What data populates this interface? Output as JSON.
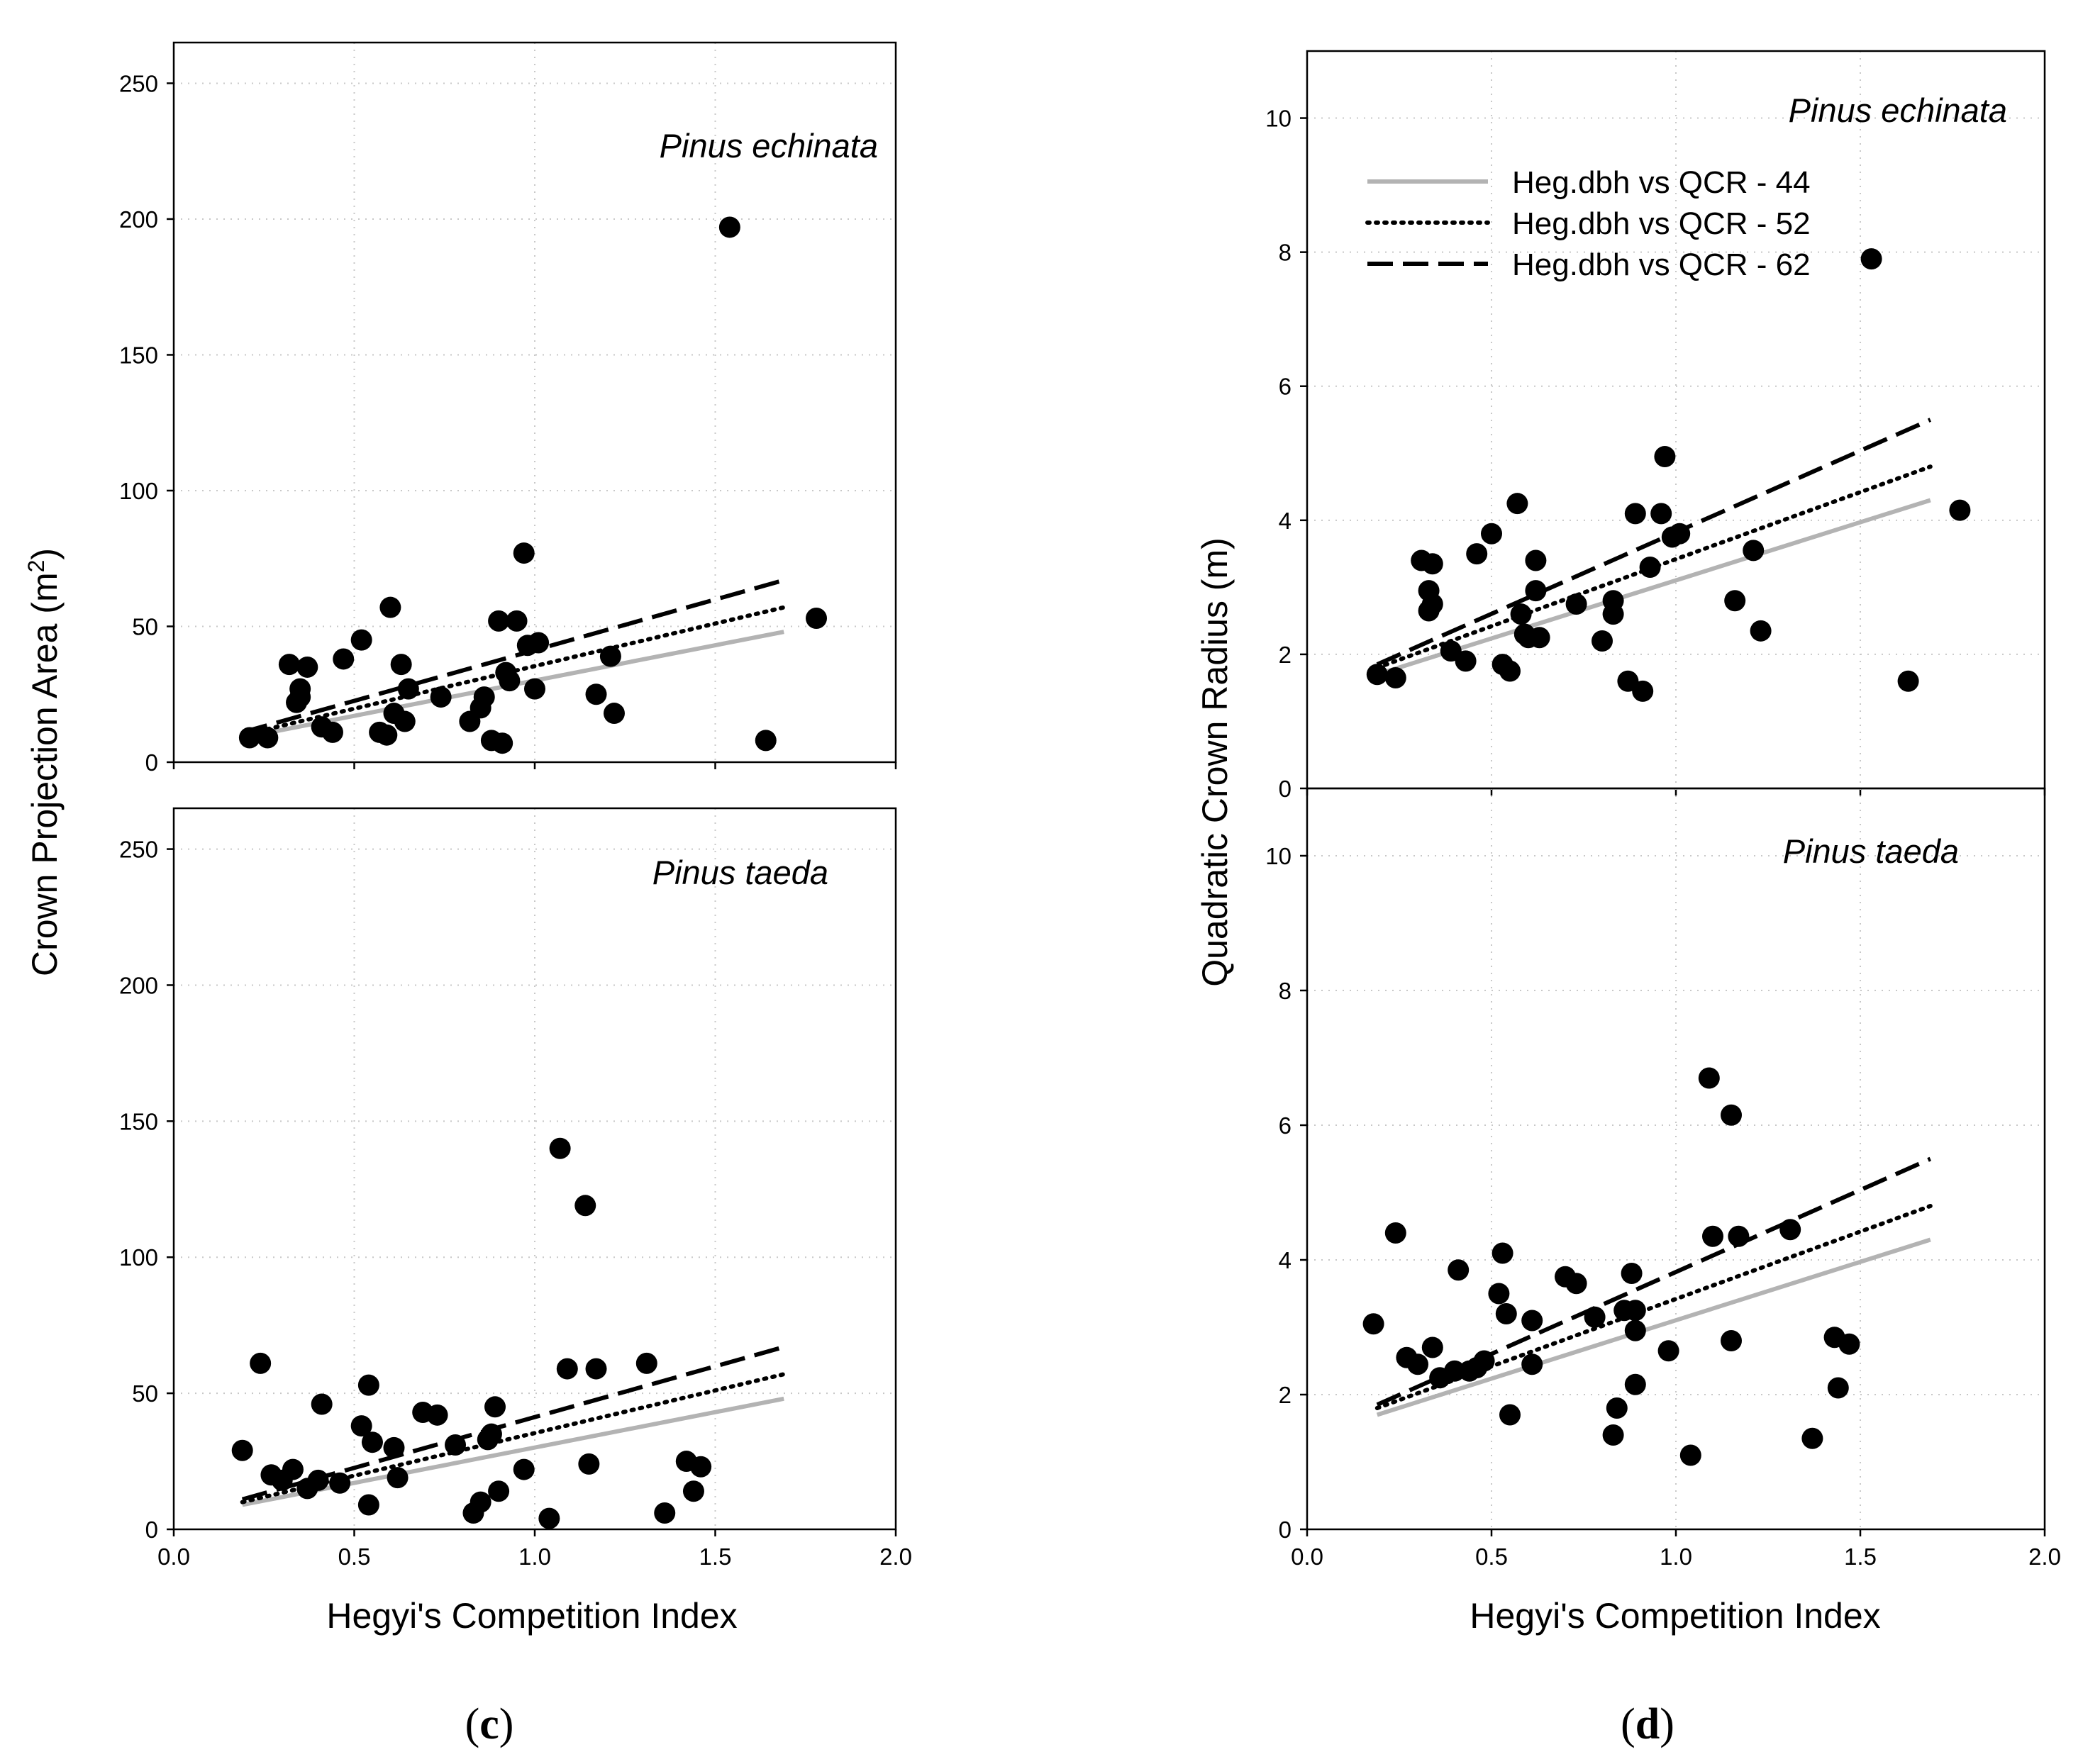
{
  "figure": {
    "label_c": {
      "open": "(",
      "letter": "c",
      "close": ")"
    },
    "label_d": {
      "open": "(",
      "letter": "d",
      "close": ")"
    }
  },
  "chart_data": [
    {
      "id": "c_top",
      "type": "scatter",
      "title": "Pinus echinata",
      "xlabel": "",
      "ylabel": "Crown Projection Area (m2)",
      "xlim": [
        0,
        2
      ],
      "ylim": [
        0,
        265
      ],
      "xticks": [],
      "yticks": [
        "0",
        "50",
        "100",
        "150",
        "200",
        "250"
      ],
      "points": {
        "x": [
          0.21,
          0.26,
          0.32,
          0.35,
          0.34,
          0.37,
          0.35,
          0.41,
          0.44,
          0.47,
          0.52,
          0.57,
          0.59,
          0.6,
          0.61,
          0.63,
          0.64,
          0.65,
          0.74,
          0.82,
          0.85,
          0.86,
          0.88,
          0.9,
          0.91,
          0.92,
          0.93,
          0.95,
          0.97,
          0.98,
          1.0,
          1.01,
          1.17,
          1.21,
          1.22,
          1.54,
          1.64,
          1.78
        ],
        "y": [
          9,
          9,
          36,
          27,
          22,
          35,
          24,
          13,
          11,
          38,
          45,
          11,
          10,
          57,
          18,
          36,
          15,
          27,
          24,
          15,
          20,
          24,
          8,
          52,
          7,
          33,
          30,
          52,
          77,
          43,
          27,
          44,
          25,
          39,
          18,
          197,
          8,
          53
        ]
      },
      "lines": [
        {
          "name": "Heg.dbh vs QCR - 44",
          "style": "solid",
          "x": [
            0.19,
            1.69
          ],
          "y": [
            9,
            48
          ]
        },
        {
          "name": "Heg.dbh vs QCR - 52",
          "style": "dotted",
          "x": [
            0.19,
            1.69
          ],
          "y": [
            10,
            57
          ]
        },
        {
          "name": "Heg.dbh vs QCR - 62",
          "style": "dashed",
          "x": [
            0.19,
            1.69
          ],
          "y": [
            11,
            67
          ]
        }
      ]
    },
    {
      "id": "c_bottom",
      "type": "scatter",
      "title": "Pinus taeda",
      "xlabel": "Hegyi's Competition Index",
      "ylabel": "Crown Projection Area (m2)",
      "xlim": [
        0,
        2
      ],
      "ylim": [
        0,
        265
      ],
      "xticks": [
        "0.0",
        "0.5",
        "1.0",
        "1.5",
        "2.0"
      ],
      "yticks": [
        "0",
        "50",
        "100",
        "150",
        "200",
        "250"
      ],
      "points": {
        "x": [
          0.19,
          0.24,
          0.27,
          0.3,
          0.33,
          0.37,
          0.4,
          0.41,
          0.46,
          0.52,
          0.54,
          0.54,
          0.55,
          0.61,
          0.62,
          0.69,
          0.73,
          0.78,
          0.83,
          0.85,
          0.87,
          0.88,
          0.89,
          0.9,
          0.97,
          1.04,
          1.07,
          1.09,
          1.14,
          1.15,
          1.17,
          1.31,
          1.36,
          1.42,
          1.44,
          1.46
        ],
        "y": [
          29,
          61,
          20,
          18,
          22,
          15,
          18,
          46,
          17,
          38,
          53,
          9,
          32,
          30,
          19,
          43,
          42,
          31,
          6,
          10,
          33,
          35,
          45,
          14,
          22,
          4,
          140,
          59,
          119,
          24,
          59,
          61,
          6,
          25,
          14,
          23
        ]
      },
      "lines": [
        {
          "name": "Heg.dbh vs QCR - 44",
          "style": "solid",
          "x": [
            0.19,
            1.69
          ],
          "y": [
            9,
            48
          ]
        },
        {
          "name": "Heg.dbh vs QCR - 52",
          "style": "dotted",
          "x": [
            0.19,
            1.69
          ],
          "y": [
            10,
            57
          ]
        },
        {
          "name": "Heg.dbh vs QCR - 62",
          "style": "dashed",
          "x": [
            0.19,
            1.69
          ],
          "y": [
            11,
            67
          ]
        }
      ]
    },
    {
      "id": "d_top",
      "type": "scatter",
      "title": "Pinus echinata",
      "xlabel": "",
      "ylabel": "Quadratic Crown Radius (m)",
      "xlim": [
        0,
        2
      ],
      "ylim": [
        0,
        11
      ],
      "xticks": [],
      "yticks": [
        "0",
        "2",
        "4",
        "6",
        "8",
        "10"
      ],
      "legend_position": "top-left",
      "points": {
        "x": [
          0.19,
          0.24,
          0.31,
          0.33,
          0.33,
          0.34,
          0.34,
          0.39,
          0.43,
          0.46,
          0.5,
          0.53,
          0.55,
          0.57,
          0.58,
          0.59,
          0.6,
          0.62,
          0.62,
          0.63,
          0.73,
          0.8,
          0.83,
          0.83,
          0.87,
          0.89,
          0.91,
          0.93,
          0.96,
          0.97,
          0.99,
          1.01,
          1.16,
          1.21,
          1.23,
          1.53,
          1.63,
          1.77
        ],
        "y": [
          1.7,
          1.65,
          3.4,
          2.95,
          2.65,
          2.75,
          3.35,
          2.05,
          1.9,
          3.5,
          3.8,
          1.85,
          1.75,
          4.25,
          2.6,
          2.3,
          2.25,
          2.95,
          3.4,
          2.25,
          2.75,
          2.2,
          2.6,
          2.8,
          1.6,
          4.1,
          1.45,
          3.3,
          4.1,
          4.95,
          3.75,
          3.8,
          2.8,
          3.55,
          2.35,
          7.9,
          1.6,
          4.15
        ]
      },
      "lines": [
        {
          "name": "Heg.dbh vs QCR - 44",
          "style": "solid",
          "x": [
            0.19,
            1.69
          ],
          "y": [
            1.7,
            4.3
          ]
        },
        {
          "name": "Heg.dbh vs QCR - 52",
          "style": "dotted",
          "x": [
            0.19,
            1.69
          ],
          "y": [
            1.8,
            4.8
          ]
        },
        {
          "name": "Heg.dbh vs QCR - 62",
          "style": "dashed",
          "x": [
            0.19,
            1.69
          ],
          "y": [
            1.85,
            5.5
          ]
        }
      ]
    },
    {
      "id": "d_bottom",
      "type": "scatter",
      "title": "Pinus taeda",
      "xlabel": "Hegyi's Competition Index",
      "ylabel": "Quadratic Crown Radius (m)",
      "xlim": [
        0,
        2
      ],
      "ylim": [
        0,
        11
      ],
      "xticks": [
        "0.0",
        "0.5",
        "1.0",
        "1.5",
        "2.0"
      ],
      "yticks": [
        "0",
        "2",
        "4",
        "6",
        "8",
        "10"
      ],
      "points": {
        "x": [
          0.18,
          0.24,
          0.27,
          0.3,
          0.34,
          0.36,
          0.4,
          0.41,
          0.44,
          0.46,
          0.48,
          0.52,
          0.53,
          0.54,
          0.55,
          0.61,
          0.61,
          0.7,
          0.73,
          0.78,
          0.83,
          0.84,
          0.86,
          0.88,
          0.89,
          0.89,
          0.89,
          0.98,
          1.04,
          1.09,
          1.1,
          1.15,
          1.15,
          1.17,
          1.31,
          1.37,
          1.43,
          1.44,
          1.47
        ],
        "y": [
          3.05,
          4.4,
          2.55,
          2.45,
          2.7,
          2.25,
          2.35,
          3.85,
          2.35,
          2.4,
          2.5,
          3.5,
          4.1,
          3.2,
          1.7,
          2.45,
          3.1,
          3.75,
          3.65,
          3.15,
          1.4,
          1.8,
          3.25,
          3.8,
          2.95,
          2.15,
          3.25,
          2.65,
          1.1,
          6.7,
          4.35,
          6.15,
          2.8,
          4.35,
          4.45,
          1.35,
          2.85,
          2.1,
          2.75
        ]
      },
      "lines": [
        {
          "name": "Heg.dbh vs QCR - 44",
          "style": "solid",
          "x": [
            0.19,
            1.69
          ],
          "y": [
            1.7,
            4.3
          ]
        },
        {
          "name": "Heg.dbh vs QCR - 52",
          "style": "dotted",
          "x": [
            0.19,
            1.69
          ],
          "y": [
            1.8,
            4.8
          ]
        },
        {
          "name": "Heg.dbh vs QCR - 62",
          "style": "dashed",
          "x": [
            0.19,
            1.69
          ],
          "y": [
            1.85,
            5.5
          ]
        }
      ]
    }
  ],
  "colors": {
    "points": "#000000",
    "grid": "#c8c8c8",
    "line_solid": "#b3b3b3",
    "line_other": "#000000"
  }
}
